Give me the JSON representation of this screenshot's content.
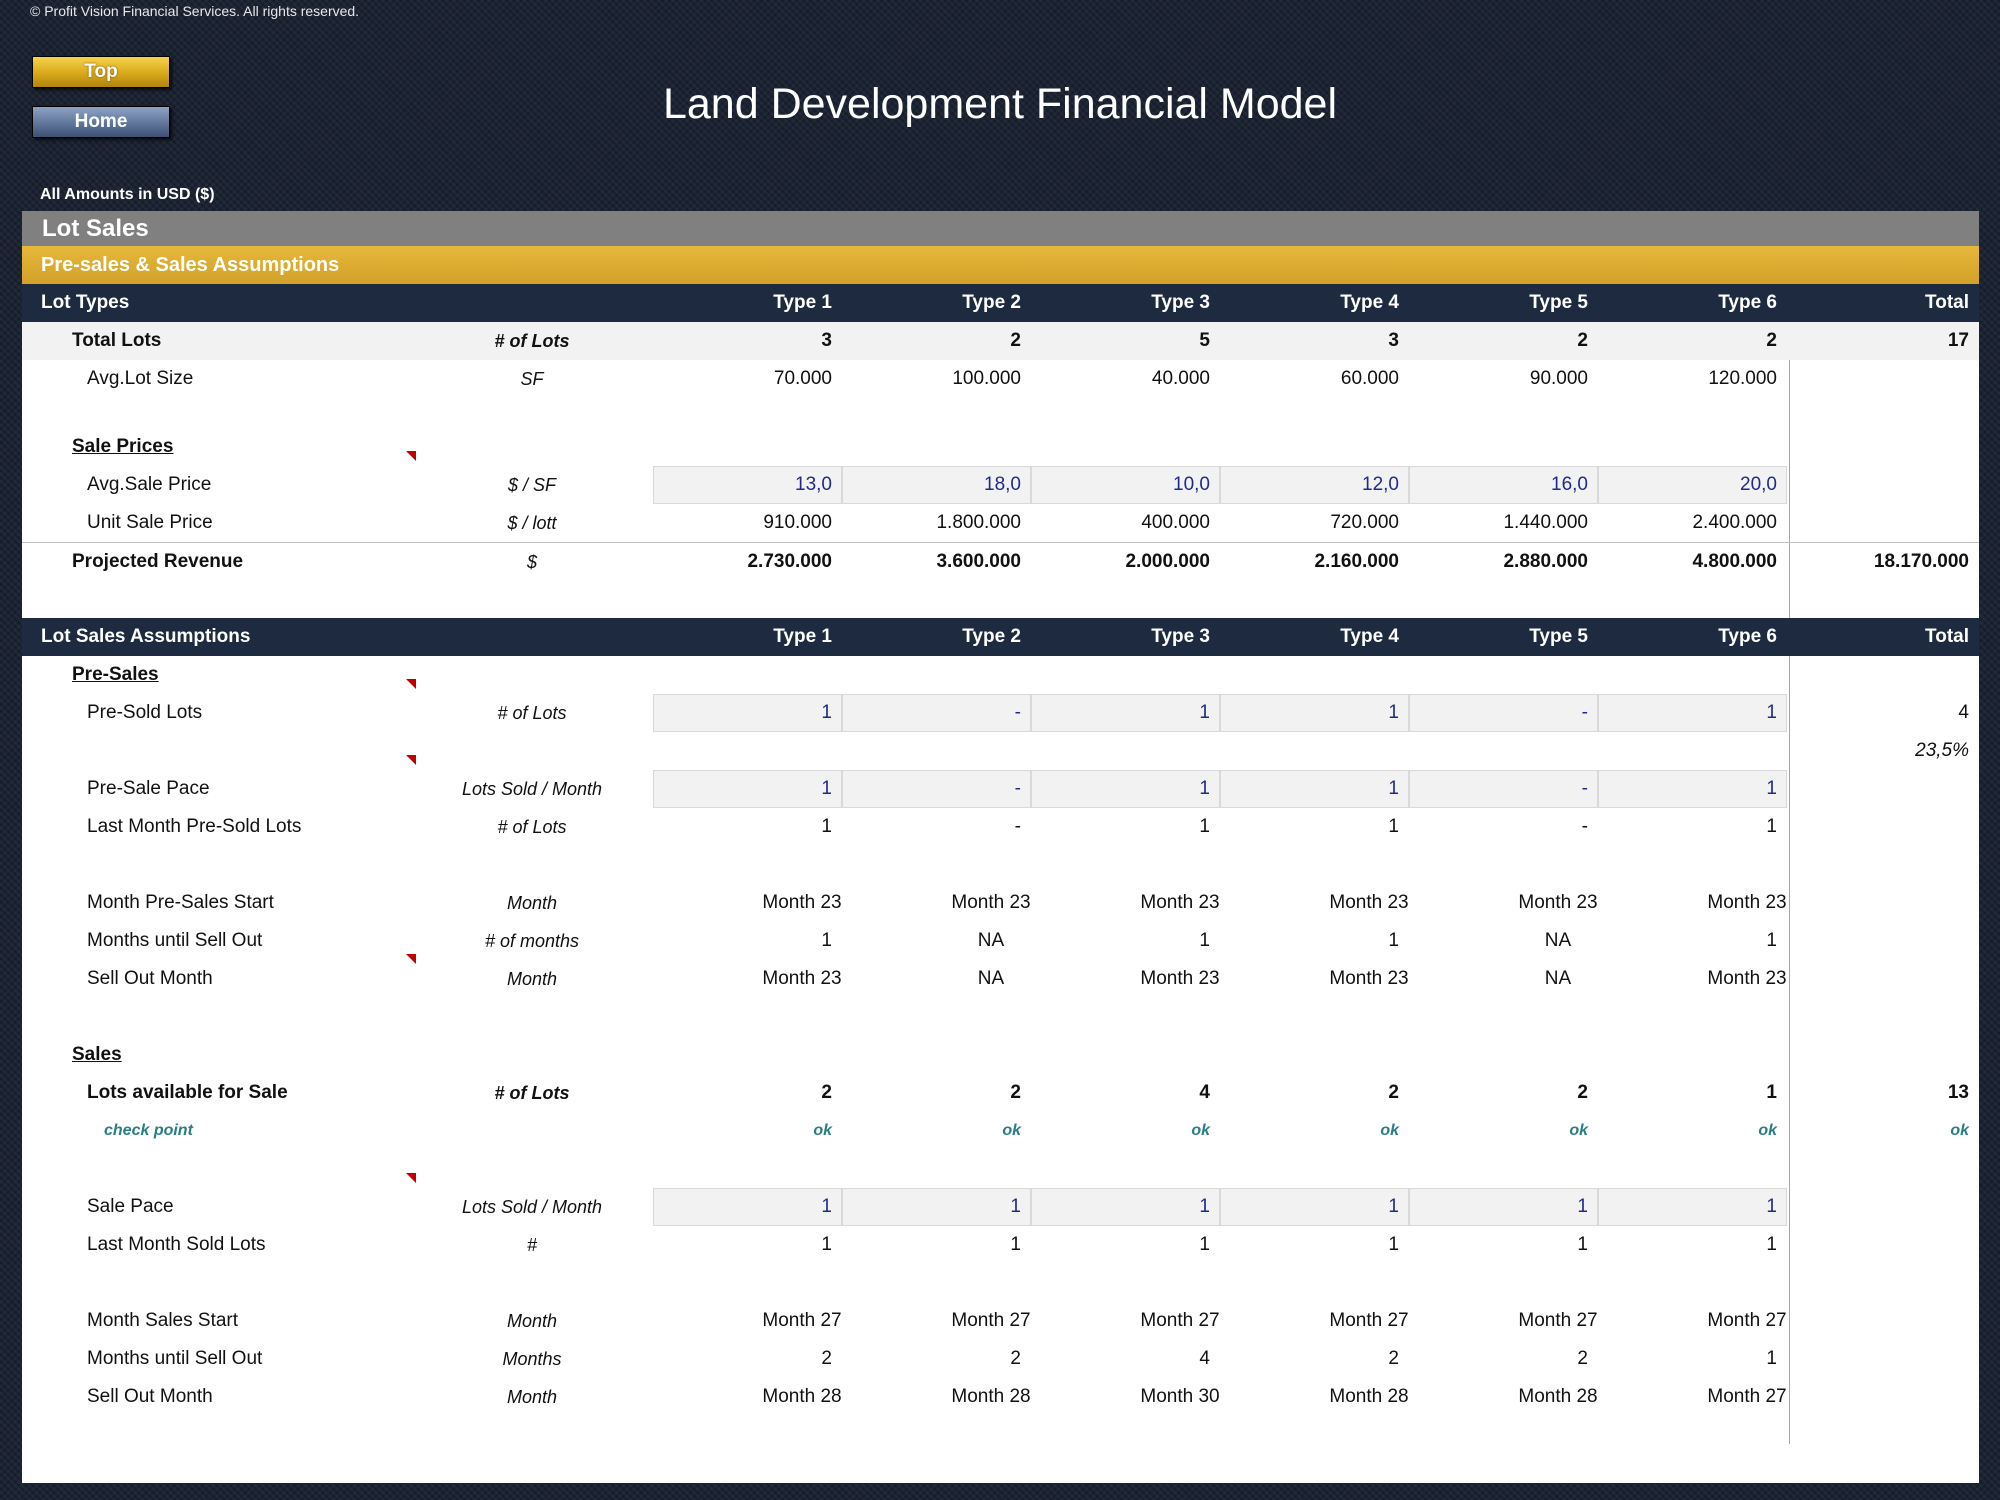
{
  "copyright": "© Profit Vision Financial Services. All rights reserved.",
  "nav": {
    "top": "Top",
    "home": "Home"
  },
  "title": "Land Development Financial Model",
  "amounts_note": "All Amounts in  USD ($)",
  "section_title": "Lot Sales",
  "subsection_title": "Pre-sales & Sales Assumptions",
  "lot_types_header": {
    "label": "Lot Types",
    "cols": [
      "Type 1",
      "Type 2",
      "Type 3",
      "Type 4",
      "Type 5",
      "Type 6"
    ],
    "total": "Total"
  },
  "lot_sales_header": {
    "label": "Lot Sales Assumptions",
    "cols": [
      "Type 1",
      "Type 2",
      "Type 3",
      "Type 4",
      "Type 5",
      "Type 6"
    ],
    "total": "Total"
  },
  "rows": {
    "total_lots": {
      "label": "Total Lots",
      "unit": "# of Lots",
      "values": [
        "3",
        "2",
        "5",
        "3",
        "2",
        "2"
      ],
      "total": "17"
    },
    "avg_lot_size": {
      "label": "Avg.Lot Size",
      "unit": "SF",
      "values": [
        "70.000",
        "100.000",
        "40.000",
        "60.000",
        "90.000",
        "120.000"
      ]
    },
    "sale_prices": {
      "label": "Sale Prices"
    },
    "avg_sale_price": {
      "label": "Avg.Sale Price",
      "unit": "$ / SF",
      "values": [
        "13,0",
        "18,0",
        "10,0",
        "12,0",
        "16,0",
        "20,0"
      ]
    },
    "unit_sale_price": {
      "label": "Unit Sale Price",
      "unit": "$ / lott",
      "values": [
        "910.000",
        "1.800.000",
        "400.000",
        "720.000",
        "1.440.000",
        "2.400.000"
      ]
    },
    "projected_revenue": {
      "label": "Projected Revenue",
      "unit": "$",
      "values": [
        "2.730.000",
        "3.600.000",
        "2.000.000",
        "2.160.000",
        "2.880.000",
        "4.800.000"
      ],
      "total": "18.170.000"
    },
    "pre_sales": {
      "label": "Pre-Sales"
    },
    "pre_sold_lots": {
      "label": "Pre-Sold Lots",
      "unit": "# of Lots",
      "values": [
        "1",
        "-",
        "1",
        "1",
        "-",
        "1"
      ],
      "total": "4",
      "pct": "23,5%"
    },
    "pre_sale_pace": {
      "label": "Pre-Sale Pace",
      "unit": "Lots Sold / Month",
      "values": [
        "1",
        "-",
        "1",
        "1",
        "-",
        "1"
      ]
    },
    "last_month_pre_sold": {
      "label": "Last Month Pre-Sold Lots",
      "unit": "# of Lots",
      "values": [
        "1",
        "-",
        "1",
        "1",
        "-",
        "1"
      ]
    },
    "month_pre_sales_start": {
      "label": "Month Pre-Sales Start",
      "unit": "Month",
      "values": [
        "Month 23",
        "Month 23",
        "Month 23",
        "Month 23",
        "Month 23",
        "Month 23"
      ]
    },
    "months_until_sell_out_pre": {
      "label": "Months until Sell Out",
      "unit": "# of months",
      "values": [
        "1",
        "NA",
        "1",
        "1",
        "NA",
        "1"
      ]
    },
    "sell_out_month_pre": {
      "label": "Sell Out Month",
      "unit": "Month",
      "values": [
        "Month 23",
        "NA",
        "Month 23",
        "Month 23",
        "NA",
        "Month 23"
      ]
    },
    "sales": {
      "label": "Sales"
    },
    "lots_available": {
      "label": "Lots available for Sale",
      "unit": "# of Lots",
      "values": [
        "2",
        "2",
        "4",
        "2",
        "2",
        "1"
      ],
      "total": "13"
    },
    "check_point": {
      "label": "check point",
      "values": [
        "ok",
        "ok",
        "ok",
        "ok",
        "ok",
        "ok"
      ],
      "total": "ok"
    },
    "sale_pace": {
      "label": "Sale Pace",
      "unit": "Lots Sold / Month",
      "values": [
        "1",
        "1",
        "1",
        "1",
        "1",
        "1"
      ]
    },
    "last_month_sold": {
      "label": "Last Month Sold Lots",
      "unit": "#",
      "values": [
        "1",
        "1",
        "1",
        "1",
        "1",
        "1"
      ]
    },
    "month_sales_start": {
      "label": "Month Sales Start",
      "unit": "Month",
      "values": [
        "Month 27",
        "Month 27",
        "Month 27",
        "Month 27",
        "Month 27",
        "Month 27"
      ]
    },
    "months_until_sell_out": {
      "label": "Months until Sell Out",
      "unit": "Months",
      "values": [
        "2",
        "2",
        "4",
        "2",
        "2",
        "1"
      ]
    },
    "sell_out_month": {
      "label": "Sell Out Month",
      "unit": "Month",
      "values": [
        "Month 28",
        "Month 28",
        "Month 30",
        "Month 28",
        "Month 28",
        "Month 27"
      ]
    }
  },
  "colors": {
    "header_band": "#1e2a3f",
    "gold_band": "#d9a92f",
    "grey_band": "#808080",
    "input_blue": "#1f2a8a",
    "check_teal": "#2a7d84"
  }
}
